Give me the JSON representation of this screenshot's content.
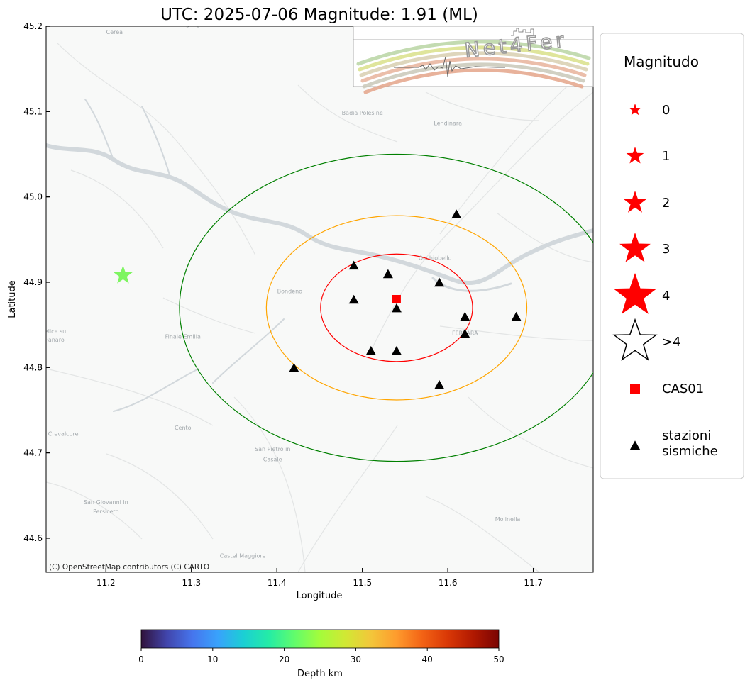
{
  "title": "UTC: 2025-07-06 Magnitude: 1.91 (ML)",
  "map": {
    "xlabel": "Longitude",
    "ylabel": "Latitude",
    "xlim": [
      11.13,
      11.77
    ],
    "ylim": [
      44.56,
      45.2
    ],
    "xticks": [
      {
        "value": 11.2,
        "label": "11.2"
      },
      {
        "value": 11.3,
        "label": "11.3"
      },
      {
        "value": 11.4,
        "label": "11.4"
      },
      {
        "value": 11.5,
        "label": "11.5"
      },
      {
        "value": 11.6,
        "label": "11.6"
      },
      {
        "value": 11.7,
        "label": "11.7"
      }
    ],
    "yticks": [
      {
        "value": 44.6,
        "label": "44.6"
      },
      {
        "value": 44.7,
        "label": "44.7"
      },
      {
        "value": 44.8,
        "label": "44.8"
      },
      {
        "value": 44.9,
        "label": "44.9"
      },
      {
        "value": 45.0,
        "label": "45.0"
      },
      {
        "value": 45.1,
        "label": "45.1"
      },
      {
        "value": 45.2,
        "label": "45.2"
      }
    ],
    "attribution": "(C) OpenStreetMap contributors (C) CARTO",
    "basemap_colors": {
      "land": "#f8f9f8",
      "water": "#d4dadd",
      "road": "#e6e8e8",
      "label": "#a3a9ad"
    },
    "place_labels": [
      {
        "name": "Cerea",
        "lon": 11.21,
        "lat": 45.191
      },
      {
        "name": "Legnago",
        "lon": 11.3,
        "lat": 45.2
      },
      {
        "name": "Badia Polesine",
        "lon": 11.5,
        "lat": 45.096
      },
      {
        "name": "Lendinara",
        "lon": 11.6,
        "lat": 45.084
      },
      {
        "name": "Occhiobello",
        "lon": 11.585,
        "lat": 44.926
      },
      {
        "name": "Bondeno",
        "lon": 11.415,
        "lat": 44.887
      },
      {
        "name": "FERRARA",
        "lon": 11.62,
        "lat": 44.838
      },
      {
        "name": "Finale Emilia",
        "lon": 11.29,
        "lat": 44.834
      },
      {
        "name": "Felice sul",
        "lon": 11.14,
        "lat": 44.84
      },
      {
        "name": "Panaro",
        "lon": 11.14,
        "lat": 44.83
      },
      {
        "name": "Cento",
        "lon": 11.29,
        "lat": 44.727
      },
      {
        "name": "Crevalcore",
        "lon": 11.15,
        "lat": 44.72
      },
      {
        "name": "San Pietro in",
        "lon": 11.395,
        "lat": 44.702
      },
      {
        "name": "Casale",
        "lon": 11.395,
        "lat": 44.69
      },
      {
        "name": "San Giovanni in",
        "lon": 11.2,
        "lat": 44.64
      },
      {
        "name": "Persiceto",
        "lon": 11.2,
        "lat": 44.629
      },
      {
        "name": "Molinella",
        "lon": 11.67,
        "lat": 44.62
      },
      {
        "name": "Castel Maggiore",
        "lon": 11.36,
        "lat": 44.577
      }
    ]
  },
  "chart_data": {
    "type": "scatter",
    "title": "UTC: 2025-07-06 Magnitude: 1.91 (ML)",
    "xlabel": "Longitude",
    "ylabel": "Latitude",
    "xlim": [
      11.13,
      11.77
    ],
    "ylim": [
      44.56,
      45.2
    ],
    "event": {
      "lon": 11.22,
      "lat": 44.908,
      "magnitude": 1.91,
      "magnitude_type": "ML",
      "color": "#7ef561"
    },
    "reference_station": {
      "name": "CAS01",
      "lon": 11.54,
      "lat": 44.88,
      "color": "#ff0000"
    },
    "circles": [
      {
        "center_lon": 11.54,
        "center_lat": 44.87,
        "radius_deg_lat": 0.063,
        "color": "#ff0000"
      },
      {
        "center_lon": 11.54,
        "center_lat": 44.87,
        "radius_deg_lat": 0.108,
        "color": "#ffa500"
      },
      {
        "center_lon": 11.54,
        "center_lat": 44.87,
        "radius_deg_lat": 0.18,
        "color": "#008000"
      }
    ],
    "stations": [
      {
        "lon": 11.61,
        "lat": 44.98
      },
      {
        "lon": 11.49,
        "lat": 44.92
      },
      {
        "lon": 11.53,
        "lat": 44.91
      },
      {
        "lon": 11.59,
        "lat": 44.9
      },
      {
        "lon": 11.49,
        "lat": 44.88
      },
      {
        "lon": 11.54,
        "lat": 44.87
      },
      {
        "lon": 11.62,
        "lat": 44.86
      },
      {
        "lon": 11.68,
        "lat": 44.86
      },
      {
        "lon": 11.62,
        "lat": 44.84
      },
      {
        "lon": 11.51,
        "lat": 44.82
      },
      {
        "lon": 11.54,
        "lat": 44.82
      },
      {
        "lon": 11.42,
        "lat": 44.8
      },
      {
        "lon": 11.59,
        "lat": 44.78
      }
    ],
    "grid": false
  },
  "legend": {
    "title": "Magnitudo",
    "placement": "right",
    "items": [
      {
        "label": "0",
        "symbol": "star",
        "level": 0
      },
      {
        "label": "1",
        "symbol": "star",
        "level": 1
      },
      {
        "label": "2",
        "symbol": "star",
        "level": 2
      },
      {
        "label": "3",
        "symbol": "star",
        "level": 3
      },
      {
        "label": "4",
        "symbol": "star",
        "level": 4
      },
      {
        "label": ">4",
        "symbol": "star-outline",
        "level": 5
      },
      {
        "label": "CAS01",
        "symbol": "square",
        "level": 0
      },
      {
        "label_lines": [
          "stazioni",
          "sismiche"
        ],
        "symbol": "triangle",
        "level": 0
      }
    ]
  },
  "colorbar": {
    "label": "Depth km",
    "min": 0,
    "max": 50,
    "colormap": "turbo",
    "colors": [
      "#30123b",
      "#4145ab",
      "#4675ed",
      "#39a2fc",
      "#1bcfd4",
      "#24eca6",
      "#61fc6c",
      "#a4fc3b",
      "#d1e834",
      "#f3c63a",
      "#fe9b2d",
      "#f36315",
      "#d93806",
      "#b11901",
      "#7a0402"
    ],
    "ticks": [
      {
        "value": 0,
        "label": "0"
      },
      {
        "value": 10,
        "label": "10"
      },
      {
        "value": 20,
        "label": "20"
      },
      {
        "value": 30,
        "label": "30"
      },
      {
        "value": 40,
        "label": "40"
      },
      {
        "value": 50,
        "label": "50"
      }
    ]
  },
  "logo": {
    "text": "Net4Fer",
    "arc_colors": [
      "#b9d5a3",
      "#d9e08a",
      "#d8cfb0",
      "#e8b39b",
      "#c9c8b8",
      "#e4a48a"
    ]
  }
}
